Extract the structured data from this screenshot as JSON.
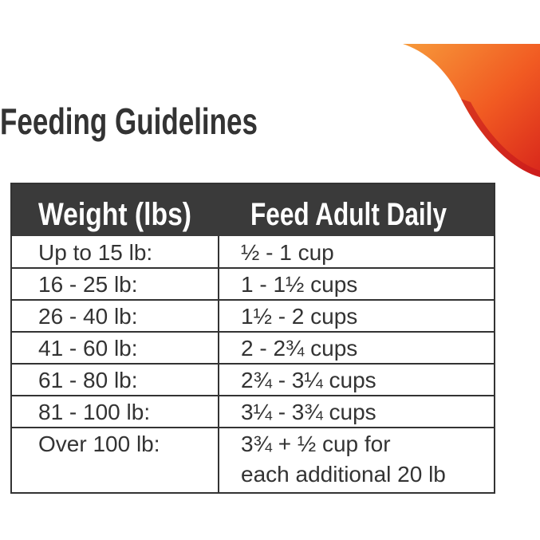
{
  "header": {
    "title": "Feeding Guidelines"
  },
  "table": {
    "columns": [
      "Weight (lbs)",
      "Feed Adult Daily"
    ],
    "rows": [
      [
        "Up to 15 lb:",
        "½ - 1 cup"
      ],
      [
        "16 - 25 lb:",
        "1 - 1½ cups"
      ],
      [
        "26 - 40 lb:",
        "1½ - 2 cups"
      ],
      [
        "41 - 60 lb:",
        "2 - 2¾ cups"
      ],
      [
        "61 - 80 lb:",
        "2¾ - 3¼ cups"
      ],
      [
        "81 - 100 lb:",
        "3¼ - 3¾ cups"
      ],
      [
        "Over 100 lb:",
        [
          "3¾ + ½ cup for",
          "each additional 20 lb"
        ]
      ]
    ]
  }
}
